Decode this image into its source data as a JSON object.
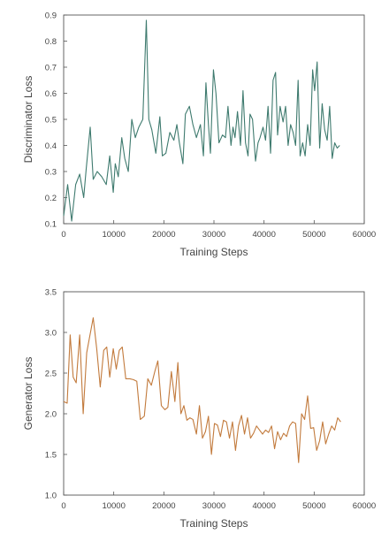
{
  "chart_data": [
    {
      "type": "line",
      "xlabel": "Training Steps",
      "ylabel": "Discriminator Loss",
      "xlim": [
        0,
        60000
      ],
      "ylim": [
        0.1,
        0.9
      ],
      "xticks": [
        0,
        10000,
        20000,
        30000,
        40000,
        50000,
        60000
      ],
      "yticks": [
        0.1,
        0.2,
        0.3,
        0.4,
        0.5,
        0.6,
        0.7,
        0.8,
        0.9
      ],
      "ytick_decimals": 1,
      "grid": false,
      "legend": "none",
      "color": "#3e7a6e",
      "series": [
        {
          "x": [
            0,
            800,
            1600,
            2400,
            3200,
            4000,
            4500,
            5300,
            5900,
            6700,
            7600,
            8500,
            9200,
            9900,
            10300,
            10900,
            11600,
            12200,
            12900,
            13600,
            14300,
            15000,
            15800,
            16500,
            17000,
            17600,
            18400,
            19200,
            19700,
            20400,
            21200,
            22000,
            22600,
            23100,
            23800,
            24300,
            25100,
            25800,
            26500,
            27300,
            27900,
            28400,
            28900,
            29300,
            29900,
            30400,
            31000,
            31700,
            32300,
            32800,
            33400,
            33800,
            34200,
            34700,
            35300,
            35800,
            36300,
            36800,
            37200,
            37700,
            38300,
            38800,
            39200,
            39800,
            40300,
            40800,
            41300,
            41800,
            42300,
            42700,
            43200,
            43800,
            44300,
            44800,
            45300,
            45800,
            46300,
            46800,
            47200,
            47700,
            48200,
            48700,
            49200,
            49700,
            50100,
            50600,
            51100,
            51600,
            52100,
            52600,
            53100,
            53600,
            54100,
            54600,
            55100
          ],
          "y": [
            0.13,
            0.25,
            0.11,
            0.25,
            0.29,
            0.2,
            0.31,
            0.47,
            0.27,
            0.3,
            0.28,
            0.25,
            0.36,
            0.22,
            0.33,
            0.28,
            0.43,
            0.35,
            0.3,
            0.5,
            0.43,
            0.47,
            0.5,
            0.88,
            0.5,
            0.46,
            0.37,
            0.51,
            0.36,
            0.37,
            0.45,
            0.42,
            0.48,
            0.41,
            0.33,
            0.52,
            0.55,
            0.48,
            0.43,
            0.48,
            0.36,
            0.64,
            0.48,
            0.37,
            0.69,
            0.6,
            0.41,
            0.44,
            0.43,
            0.55,
            0.4,
            0.47,
            0.43,
            0.53,
            0.4,
            0.61,
            0.41,
            0.36,
            0.52,
            0.5,
            0.34,
            0.41,
            0.43,
            0.47,
            0.42,
            0.55,
            0.37,
            0.65,
            0.68,
            0.44,
            0.55,
            0.49,
            0.55,
            0.4,
            0.48,
            0.45,
            0.4,
            0.65,
            0.36,
            0.41,
            0.36,
            0.48,
            0.4,
            0.69,
            0.61,
            0.72,
            0.39,
            0.56,
            0.46,
            0.42,
            0.55,
            0.35,
            0.41,
            0.39,
            0.4
          ]
        }
      ]
    },
    {
      "type": "line",
      "xlabel": "Training Steps",
      "ylabel": "Generator Loss",
      "xlim": [
        0,
        60000
      ],
      "ylim": [
        1.0,
        3.5
      ],
      "xticks": [
        0,
        10000,
        20000,
        30000,
        40000,
        50000,
        60000
      ],
      "yticks": [
        1.0,
        1.5,
        2.0,
        2.5,
        3.0,
        3.5
      ],
      "ytick_decimals": 1,
      "grid": false,
      "legend": "none",
      "color": "#c27a3c",
      "series": [
        {
          "x": [
            0,
            700,
            1300,
            1900,
            2500,
            3200,
            3900,
            4600,
            5200,
            5900,
            6600,
            7300,
            8000,
            8600,
            9200,
            9900,
            10500,
            11100,
            11700,
            12400,
            13200,
            13900,
            14600,
            15300,
            16100,
            16800,
            17500,
            18200,
            18800,
            19500,
            20200,
            20800,
            21500,
            22200,
            22800,
            23400,
            24000,
            24600,
            25200,
            25800,
            26500,
            27100,
            27700,
            28300,
            28900,
            29500,
            30100,
            30700,
            31300,
            31900,
            32500,
            33100,
            33700,
            34300,
            34900,
            35500,
            36100,
            36700,
            37300,
            37900,
            38500,
            39100,
            39700,
            40300,
            40900,
            41500,
            42100,
            42700,
            43300,
            43900,
            44500,
            45100,
            45700,
            46300,
            46900,
            47500,
            48100,
            48700,
            49300,
            49900,
            50500,
            51100,
            51700,
            52300,
            52900,
            53500,
            54100,
            54700,
            55300
          ],
          "y": [
            2.15,
            2.13,
            2.97,
            2.45,
            2.38,
            2.97,
            2.0,
            2.75,
            2.95,
            3.18,
            2.8,
            2.33,
            2.78,
            2.82,
            2.45,
            2.8,
            2.55,
            2.78,
            2.82,
            2.43,
            2.43,
            2.42,
            2.4,
            1.93,
            1.97,
            2.43,
            2.35,
            2.52,
            2.65,
            2.1,
            2.05,
            2.08,
            2.52,
            2.15,
            2.63,
            2.0,
            2.1,
            1.92,
            1.95,
            1.93,
            1.75,
            2.1,
            1.7,
            1.78,
            1.97,
            1.5,
            1.88,
            1.86,
            1.72,
            1.92,
            1.9,
            1.7,
            1.9,
            1.55,
            1.85,
            1.98,
            1.75,
            1.95,
            1.7,
            1.76,
            1.85,
            1.8,
            1.75,
            1.8,
            1.77,
            1.85,
            1.57,
            1.78,
            1.68,
            1.76,
            1.72,
            1.85,
            1.9,
            1.88,
            1.4,
            2.0,
            1.93,
            2.22,
            1.82,
            1.83,
            1.55,
            1.67,
            1.9,
            1.63,
            1.75,
            1.85,
            1.8,
            1.95,
            1.9
          ]
        }
      ]
    }
  ]
}
